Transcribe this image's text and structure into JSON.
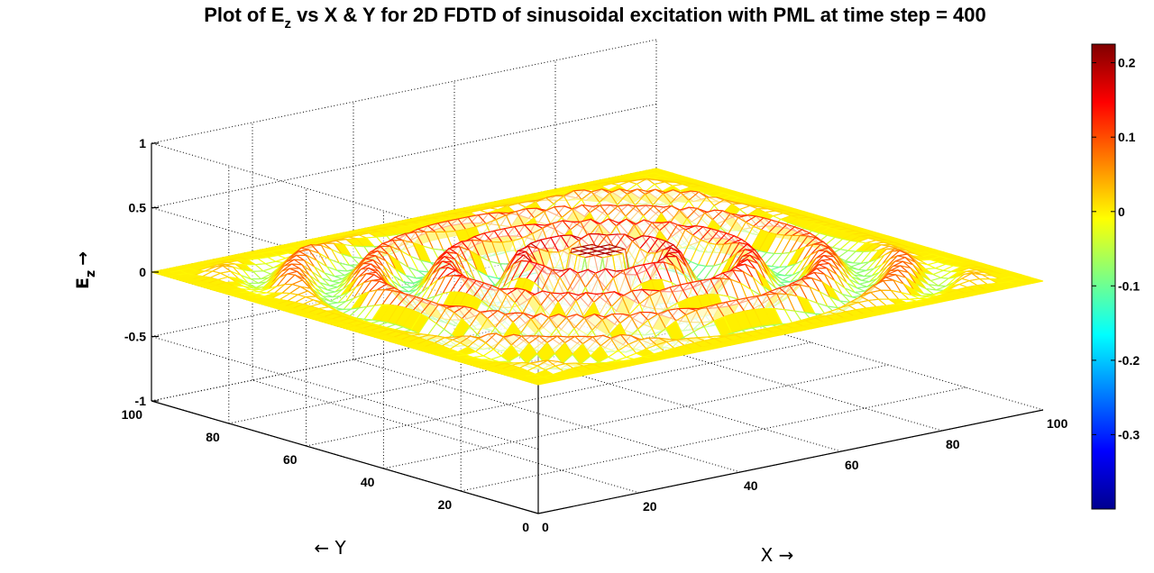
{
  "chart_data": {
    "type": "surface",
    "title": {
      "prefix": "Plot of E",
      "subscript": "z",
      "suffix": " vs X & Y for 2D FDTD of sinusoidal excitation with PML at time step = 400"
    },
    "xlabel": "X →",
    "ylabel": "← Y",
    "zlabel": {
      "main": "E",
      "subscript": "z",
      "arrow": "→"
    },
    "x_ticks": [
      "0",
      "20",
      "40",
      "60",
      "80",
      "100"
    ],
    "y_ticks": [
      "0",
      "20",
      "40",
      "60",
      "80",
      "100"
    ],
    "z_ticks": [
      "-1",
      "-0.5",
      "0",
      "0.5",
      "1"
    ],
    "xlim": [
      0,
      100
    ],
    "ylim": [
      0,
      100
    ],
    "zlim": [
      -1,
      1
    ],
    "grid": true,
    "colormap": "jet",
    "colorbar": {
      "range": [
        -0.4,
        0.225
      ],
      "ticks": [
        "-0.3",
        "-0.2",
        "-0.1",
        "0",
        "0.1",
        "0.2"
      ],
      "tick_values": [
        -0.3,
        -0.2,
        -0.1,
        0,
        0.1,
        0.2
      ],
      "placement": "right"
    },
    "field": {
      "description_of_surface": "radially symmetric damped sinusoid with PML absorbing boundary",
      "center": [
        50,
        50
      ],
      "wavelength": 12,
      "peak_value": 0.22,
      "min_value": -0.35,
      "pml_width": 10
    }
  }
}
